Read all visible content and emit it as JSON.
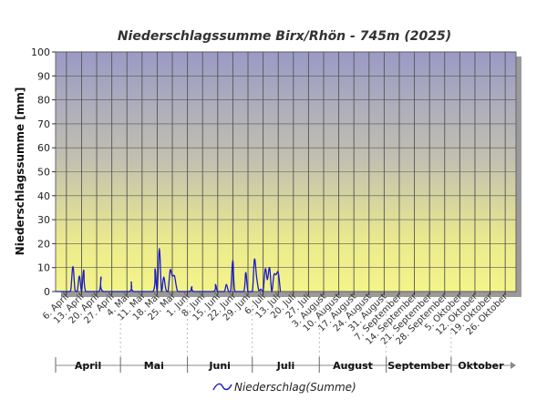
{
  "chart_data": {
    "type": "line",
    "title": "Niederschlagssumme Birx/Rhön - 745m (2025)",
    "ylabel": "Niederschlagssumme [mm]",
    "xlabel": "",
    "ylim": [
      0,
      100
    ],
    "yticks": [
      "0",
      "10",
      "20",
      "30",
      "40",
      "50",
      "60",
      "70",
      "80",
      "90",
      "100"
    ],
    "xlim": [
      "2025-04-01",
      "2025-10-31"
    ],
    "xtick_labels": [
      {
        "date": "2025-04-06",
        "label": "6. April"
      },
      {
        "date": "2025-04-13",
        "label": "13. April"
      },
      {
        "date": "2025-04-20",
        "label": "20. April"
      },
      {
        "date": "2025-04-27",
        "label": "27. April"
      },
      {
        "date": "2025-05-04",
        "label": "4. Mai"
      },
      {
        "date": "2025-05-11",
        "label": "11. Mai"
      },
      {
        "date": "2025-05-18",
        "label": "18. Mai"
      },
      {
        "date": "2025-05-25",
        "label": "25. Mai"
      },
      {
        "date": "2025-06-01",
        "label": "1. Juni"
      },
      {
        "date": "2025-06-08",
        "label": "8. Juni"
      },
      {
        "date": "2025-06-15",
        "label": "15. Juni"
      },
      {
        "date": "2025-06-22",
        "label": "22. Juni"
      },
      {
        "date": "2025-06-29",
        "label": "29. Juni"
      },
      {
        "date": "2025-07-06",
        "label": "6. Juli"
      },
      {
        "date": "2025-07-13",
        "label": "13. Juli"
      },
      {
        "date": "2025-07-20",
        "label": "20. Juli"
      },
      {
        "date": "2025-07-27",
        "label": "27. Juli"
      },
      {
        "date": "2025-08-03",
        "label": "3. August"
      },
      {
        "date": "2025-08-10",
        "label": "10. August"
      },
      {
        "date": "2025-08-17",
        "label": "17. August"
      },
      {
        "date": "2025-08-24",
        "label": "24. August"
      },
      {
        "date": "2025-08-31",
        "label": "31. August"
      },
      {
        "date": "2025-09-07",
        "label": "7. September"
      },
      {
        "date": "2025-09-14",
        "label": "14. September"
      },
      {
        "date": "2025-09-21",
        "label": "21. September"
      },
      {
        "date": "2025-09-28",
        "label": "28. September"
      },
      {
        "date": "2025-10-05",
        "label": "5. Oktober"
      },
      {
        "date": "2025-10-12",
        "label": "12. Oktober"
      },
      {
        "date": "2025-10-19",
        "label": "19. Oktober"
      },
      {
        "date": "2025-10-26",
        "label": "26. Oktober"
      }
    ],
    "months": [
      {
        "label": "April",
        "start": "2025-04-01",
        "end": "2025-05-01"
      },
      {
        "label": "Mai",
        "start": "2025-05-01",
        "end": "2025-06-01"
      },
      {
        "label": "Juni",
        "start": "2025-06-01",
        "end": "2025-07-01"
      },
      {
        "label": "Juli",
        "start": "2025-07-01",
        "end": "2025-08-01"
      },
      {
        "label": "August",
        "start": "2025-08-01",
        "end": "2025-09-01"
      },
      {
        "label": "September",
        "start": "2025-09-01",
        "end": "2025-10-01"
      },
      {
        "label": "Oktober",
        "start": "2025-10-01",
        "end": "2025-11-01"
      }
    ],
    "series": [
      {
        "name": "Niederschlag(Summe)",
        "color": "#1a1acc",
        "points": [
          [
            "2025-04-01",
            0
          ],
          [
            "2025-04-07",
            0
          ],
          [
            "2025-04-08",
            0.5
          ],
          [
            "2025-04-09",
            10.5
          ],
          [
            "2025-04-10",
            0.5
          ],
          [
            "2025-04-11",
            0
          ],
          [
            "2025-04-12",
            6.5
          ],
          [
            "2025-04-13",
            0
          ],
          [
            "2025-04-14",
            9
          ],
          [
            "2025-04-15",
            0
          ],
          [
            "2025-04-21",
            0
          ],
          [
            "2025-04-22",
            6
          ],
          [
            "2025-04-23",
            0
          ],
          [
            "2025-05-05",
            0
          ],
          [
            "2025-05-06",
            4
          ],
          [
            "2025-05-07",
            0
          ],
          [
            "2025-05-16",
            0
          ],
          [
            "2025-05-17",
            9.5
          ],
          [
            "2025-05-18",
            0
          ],
          [
            "2025-05-19",
            18
          ],
          [
            "2025-05-20",
            0
          ],
          [
            "2025-05-21",
            6
          ],
          [
            "2025-05-22",
            1
          ],
          [
            "2025-05-23",
            0
          ],
          [
            "2025-05-24",
            9
          ],
          [
            "2025-05-25",
            6.5
          ],
          [
            "2025-05-26",
            6.5
          ],
          [
            "2025-05-27",
            1.5
          ],
          [
            "2025-05-28",
            0
          ],
          [
            "2025-06-02",
            0
          ],
          [
            "2025-06-03",
            2
          ],
          [
            "2025-06-04",
            0
          ],
          [
            "2025-06-13",
            0
          ],
          [
            "2025-06-14",
            3
          ],
          [
            "2025-06-15",
            0
          ],
          [
            "2025-06-18",
            0
          ],
          [
            "2025-06-19",
            3
          ],
          [
            "2025-06-20",
            0
          ],
          [
            "2025-06-21",
            0
          ],
          [
            "2025-06-22",
            13
          ],
          [
            "2025-06-23",
            0
          ],
          [
            "2025-06-27",
            0
          ],
          [
            "2025-06-28",
            8
          ],
          [
            "2025-06-29",
            0
          ],
          [
            "2025-07-01",
            0
          ],
          [
            "2025-07-02",
            13.5
          ],
          [
            "2025-07-03",
            6
          ],
          [
            "2025-07-04",
            0.5
          ],
          [
            "2025-07-05",
            1
          ],
          [
            "2025-07-06",
            0
          ],
          [
            "2025-07-07",
            9.5
          ],
          [
            "2025-07-08",
            5
          ],
          [
            "2025-07-09",
            10
          ],
          [
            "2025-07-10",
            0
          ],
          [
            "2025-07-11",
            7
          ],
          [
            "2025-07-12",
            7
          ],
          [
            "2025-07-13",
            8
          ],
          [
            "2025-07-14",
            0
          ]
        ]
      }
    ],
    "legend_position": "bottom",
    "grid": true
  }
}
